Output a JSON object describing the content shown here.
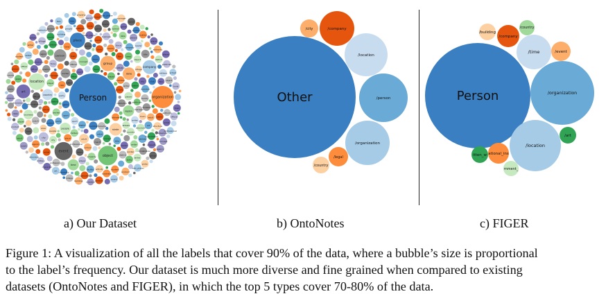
{
  "panels": {
    "a": {
      "subcaption": "a) Our Dataset",
      "center_label": "Person",
      "labels": [
        "organization",
        "object",
        "event",
        "location",
        "group",
        "place",
        "company",
        "art",
        "person",
        "date",
        "state",
        "time",
        "region",
        "country",
        "people",
        "adult",
        "worker",
        "business",
        "concept",
        "city",
        "athlete",
        "sport",
        "player",
        "title",
        "team",
        "building",
        "team_player",
        "product",
        "structure",
        "town",
        "artist",
        "institution",
        "administration",
        "official",
        "leader",
        "property",
        "facility",
        "writer",
        "district",
        "body",
        "student",
        "activity",
        "university",
        "player",
        "game",
        "area",
        "party",
        "politician",
        "position",
        "school",
        "officer",
        "village",
        "coach",
        "member",
        "character",
        "agency",
        "authority",
        "film",
        "military",
        "writer",
        "professional",
        "county",
        "nation",
        "manager",
        "force",
        "club"
      ]
    },
    "b": {
      "subcaption": "b) OntoNotes",
      "bubbles": [
        {
          "label": "Other"
        },
        {
          "label": "/company"
        },
        {
          "label": "/city"
        },
        {
          "label": "/location"
        },
        {
          "label": "/person"
        },
        {
          "label": "/organization"
        },
        {
          "label": "/legal"
        },
        {
          "label": "/country"
        }
      ]
    },
    "c": {
      "subcaption": "c) FIGER",
      "bubbles": [
        {
          "label": "Person"
        },
        {
          "label": "/organization"
        },
        {
          "label": "/location"
        },
        {
          "label": "/time"
        },
        {
          "label": "/company"
        },
        {
          "label": "/building"
        },
        {
          "label": "/country"
        },
        {
          "label": "/event"
        },
        {
          "label": "/art"
        },
        {
          "label": "itten_w"
        },
        {
          "label": "ational_ins"
        },
        {
          "label": "rnment_"
        }
      ]
    }
  },
  "caption": {
    "line1": "Figure 1: A visualization of all the labels that cover 90% of the data, where a bubble’s size is proportional",
    "line2": "to the label’s frequency. Our dataset is much more diverse and fine grained when compared to existing",
    "line3": "datasets (OntoNotes and FIGER), in which the top 5 types cover 70-80% of the data."
  },
  "colors": {
    "dark_blue": "#3a7fc1",
    "mid_blue": "#6aaad6",
    "light_blue": "#a6cbe7",
    "pale_blue": "#c8dcf0",
    "dark_orange": "#e6550d",
    "orange": "#fd8d3c",
    "light_orange": "#fdae6b",
    "pale_orange": "#fdd0a2",
    "dark_green": "#31a354",
    "green": "#74c476",
    "light_green": "#a1d99b",
    "pale_green": "#c7e9c0",
    "purple": "#756bb1",
    "grey": "#636363"
  }
}
